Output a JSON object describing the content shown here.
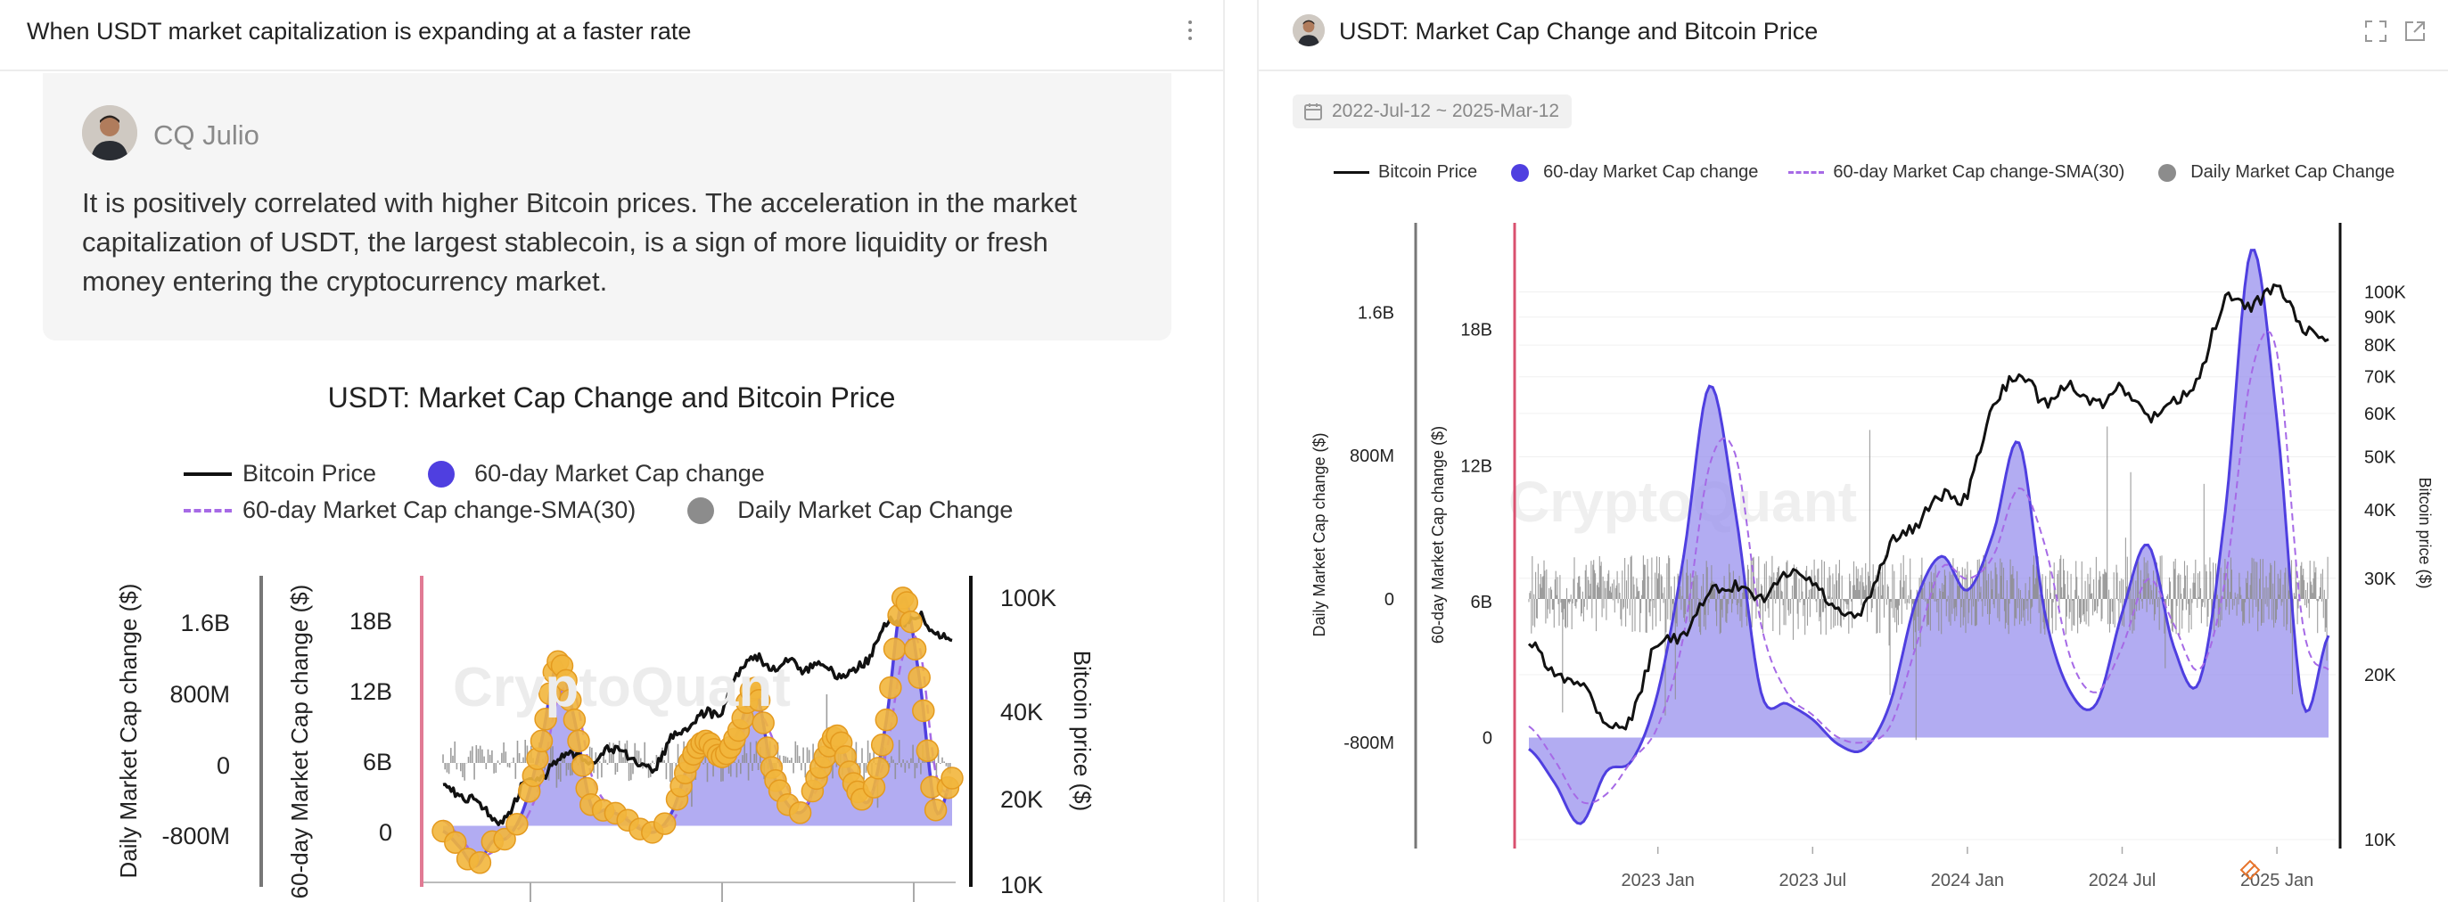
{
  "left": {
    "title": "When USDT market capitalization is expanding at a faster rate",
    "comment": {
      "author": "CQ Julio",
      "text": "It is positively correlated with higher Bitcoin prices. The acceleration in the market capitalization of USDT, the largest stablecoin, is a sign of more liquidity or fresh money entering the cryptocurrency market."
    },
    "chart_title": "USDT: Market Cap Change and Bitcoin Price"
  },
  "right": {
    "title": "USDT: Market Cap Change and Bitcoin Price",
    "date_range": "2022-Jul-12 ~ 2025-Mar-12"
  },
  "colors": {
    "bitcoin": "#111111",
    "market_cap_change": "#4f3fe0",
    "market_cap_fill": "#9890ee",
    "sma": "#a66ae6",
    "daily": "#8c8c8c",
    "marker": "#f2b63c",
    "accent_axis": "#d9506f"
  },
  "chart_data": [
    {
      "id": "left-chart",
      "type": "line",
      "title": "USDT: Market Cap Change and Bitcoin Price",
      "legend": [
        "Bitcoin Price",
        "60-day Market Cap change",
        "60-day Market Cap change-SMA(30)",
        "Daily Market Cap Change"
      ],
      "y_daily": {
        "label": "Daily Market Cap change ($)",
        "ticks": [
          "1.6B",
          "800M",
          "0",
          "-800M"
        ]
      },
      "y_60d": {
        "label": "60-day Market Cap change ($)",
        "ticks": [
          "18B",
          "12B",
          "6B",
          "0"
        ]
      },
      "y_btc": {
        "label": "Bitcoin price ($)",
        "scale": "log",
        "ticks": [
          "100K",
          "40K",
          "20K",
          "10K"
        ]
      }
    },
    {
      "id": "right-chart",
      "type": "line",
      "title": "USDT: Market Cap Change and Bitcoin Price",
      "legend": [
        "Bitcoin Price",
        "60-day Market Cap change",
        "60-day Market Cap change-SMA(30)",
        "Daily Market Cap Change"
      ],
      "x_ticks": [
        "2023 Jan",
        "2023 Jul",
        "2024 Jan",
        "2024 Jul",
        "2025 Jan"
      ],
      "y_daily": {
        "label": "Daily Market Cap change ($)",
        "ticks": [
          "1.6B",
          "800M",
          "0",
          "-800M"
        ],
        "range": [
          -1200000000,
          2300000000
        ]
      },
      "y_60d": {
        "label": "60-day Market Cap change ($)",
        "ticks": [
          "18B",
          "12B",
          "6B",
          "0"
        ],
        "range": [
          -4500000000,
          22000000000
        ]
      },
      "y_btc": {
        "label": "Bitcoin price ($)",
        "scale": "log",
        "ticks": [
          "100K",
          "90K",
          "80K",
          "70K",
          "60K",
          "50K",
          "40K",
          "30K",
          "20K",
          "10K"
        ],
        "range": [
          10000,
          125000
        ]
      },
      "x": [
        "2022-08",
        "2022-09",
        "2022-10",
        "2022-11",
        "2022-12",
        "2023-01",
        "2023-02",
        "2023-03",
        "2023-04",
        "2023-05",
        "2023-06",
        "2023-07",
        "2023-08",
        "2023-09",
        "2023-10",
        "2023-11",
        "2023-12",
        "2024-01",
        "2024-02",
        "2024-03",
        "2024-04",
        "2024-05",
        "2024-06",
        "2024-07",
        "2024-08",
        "2024-09",
        "2024-10",
        "2024-11",
        "2024-12",
        "2025-01",
        "2025-02",
        "2025-03"
      ],
      "series": [
        {
          "name": "Bitcoin Price",
          "axis": "btc",
          "values": [
            23000,
            20000,
            19500,
            16500,
            16800,
            23000,
            23500,
            28000,
            29000,
            27500,
            30500,
            29500,
            26000,
            26500,
            34500,
            37500,
            42500,
            43000,
            61500,
            70500,
            63000,
            67500,
            62000,
            66500,
            59000,
            63000,
            70000,
            96500,
            94000,
            102000,
            86000,
            83000
          ]
        },
        {
          "name": "60-day Market Cap change",
          "axis": "60d",
          "values": [
            -0.5,
            -2.0,
            -3.8,
            -1.5,
            -1.0,
            2.0,
            8.0,
            15.5,
            10.0,
            2.0,
            1.5,
            0.8,
            -0.3,
            -0.5,
            1.5,
            6.0,
            8.0,
            6.5,
            9.0,
            13.0,
            5.5,
            2.0,
            1.5,
            5.5,
            8.5,
            4.0,
            2.5,
            10.0,
            21.5,
            14.0,
            1.5,
            4.5
          ]
        },
        {
          "name": "60-day Market Cap change-SMA(30)",
          "axis": "60d",
          "values": [
            0.5,
            -1.0,
            -2.8,
            -2.5,
            -1.0,
            0.5,
            4.5,
            12.0,
            12.5,
            5.0,
            2.0,
            1.0,
            0.0,
            -0.2,
            0.5,
            4.0,
            7.5,
            7.0,
            8.0,
            11.0,
            8.5,
            3.5,
            2.0,
            4.0,
            7.0,
            5.0,
            3.0,
            7.0,
            16.0,
            17.0,
            5.0,
            3.0
          ]
        }
      ]
    }
  ]
}
